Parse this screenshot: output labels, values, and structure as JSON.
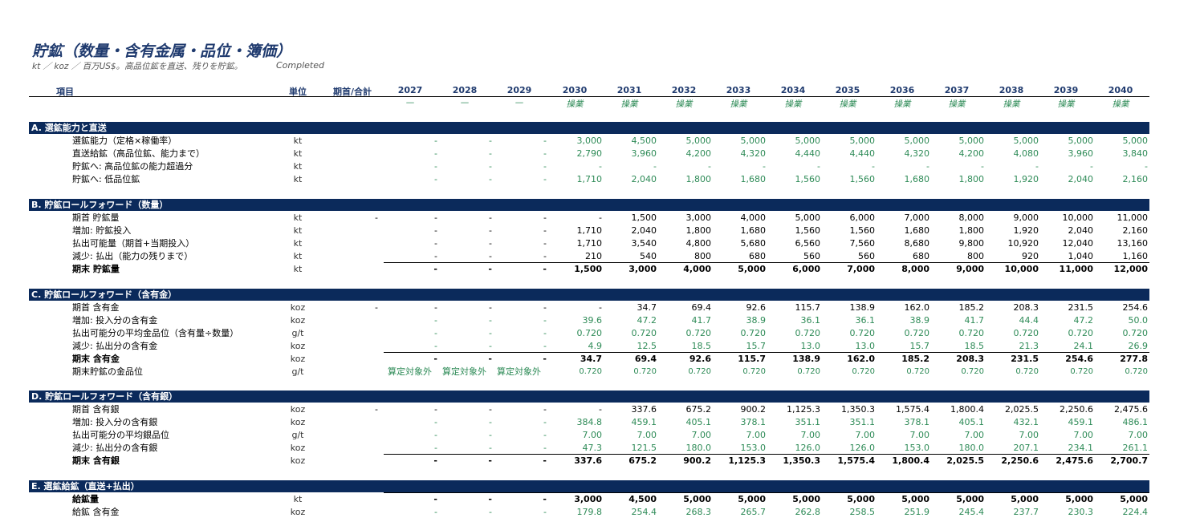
{
  "title": "貯鉱（数量・含有金属・品位・簿価）",
  "subtitle": "kt ／ koz ／ 百万US$。高品位鉱を直送、残りを貯鉱。",
  "status": "Completed",
  "header": {
    "item": "項目",
    "unit": "単位",
    "opening": "期首/合計",
    "years": [
      "2027",
      "2028",
      "2029",
      "2030",
      "2031",
      "2032",
      "2033",
      "2034",
      "2035",
      "2036",
      "2037",
      "2038",
      "2039",
      "2040"
    ],
    "phases": [
      "—",
      "—",
      "—",
      "操業",
      "操業",
      "操業",
      "操業",
      "操業",
      "操業",
      "操業",
      "操業",
      "操業",
      "操業",
      "操業"
    ]
  },
  "sections": [
    {
      "title": "A. 選鉱能力と直送",
      "rows": [
        {
          "label": "選鉱能力（定格×稼働率）",
          "unit": "kt",
          "opening": "",
          "style": "input",
          "values": [
            "-",
            "-",
            "-",
            "3,000",
            "4,500",
            "5,000",
            "5,000",
            "5,000",
            "5,000",
            "5,000",
            "5,000",
            "5,000",
            "5,000",
            "5,000"
          ]
        },
        {
          "label": "直送給鉱（高品位鉱、能力まで）",
          "unit": "kt",
          "opening": "",
          "style": "input",
          "values": [
            "-",
            "-",
            "-",
            "2,790",
            "3,960",
            "4,200",
            "4,320",
            "4,440",
            "4,440",
            "4,320",
            "4,200",
            "4,080",
            "3,960",
            "3,840"
          ]
        },
        {
          "label": "貯鉱へ: 高品位鉱の能力超過分",
          "unit": "kt",
          "opening": "",
          "style": "input",
          "values": [
            "-",
            "-",
            "-",
            "-",
            "-",
            "-",
            "-",
            "-",
            "-",
            "-",
            "-",
            "-",
            "-",
            "-"
          ]
        },
        {
          "label": "貯鉱へ: 低品位鉱",
          "unit": "kt",
          "opening": "",
          "style": "input",
          "values": [
            "-",
            "-",
            "-",
            "1,710",
            "2,040",
            "1,800",
            "1,680",
            "1,560",
            "1,560",
            "1,680",
            "1,800",
            "1,920",
            "2,040",
            "2,160"
          ]
        }
      ]
    },
    {
      "title": "B. 貯鉱ロールフォワード（数量）",
      "rows": [
        {
          "label": "期首 貯鉱量",
          "unit": "kt",
          "opening": "-",
          "style": "plain",
          "values": [
            "-",
            "-",
            "-",
            "-",
            "1,500",
            "3,000",
            "4,000",
            "5,000",
            "6,000",
            "7,000",
            "8,000",
            "9,000",
            "10,000",
            "11,000"
          ]
        },
        {
          "label": "増加: 貯鉱投入",
          "unit": "kt",
          "opening": "",
          "style": "plain",
          "values": [
            "-",
            "-",
            "-",
            "1,710",
            "2,040",
            "1,800",
            "1,680",
            "1,560",
            "1,560",
            "1,680",
            "1,800",
            "1,920",
            "2,040",
            "2,160"
          ]
        },
        {
          "label": "払出可能量（期首+当期投入）",
          "unit": "kt",
          "opening": "",
          "style": "plain",
          "values": [
            "-",
            "-",
            "-",
            "1,710",
            "3,540",
            "4,800",
            "5,680",
            "6,560",
            "7,560",
            "8,680",
            "9,800",
            "10,920",
            "12,040",
            "13,160"
          ]
        },
        {
          "label": "減少: 払出（能力の残りまで）",
          "unit": "kt",
          "opening": "",
          "style": "plain",
          "values": [
            "-",
            "-",
            "-",
            "210",
            "540",
            "800",
            "680",
            "560",
            "560",
            "680",
            "800",
            "920",
            "1,040",
            "1,160"
          ]
        },
        {
          "label": "期末 貯鉱量",
          "unit": "kt",
          "opening": "",
          "style": "bold",
          "values": [
            "-",
            "-",
            "-",
            "1,500",
            "3,000",
            "4,000",
            "5,000",
            "6,000",
            "7,000",
            "8,000",
            "9,000",
            "10,000",
            "11,000",
            "12,000"
          ]
        }
      ]
    },
    {
      "title": "C. 貯鉱ロールフォワード（含有金）",
      "rows": [
        {
          "label": "期首 含有金",
          "unit": "koz",
          "opening": "-",
          "style": "plain",
          "values": [
            "-",
            "-",
            "-",
            "-",
            "34.7",
            "69.4",
            "92.6",
            "115.7",
            "138.9",
            "162.0",
            "185.2",
            "208.3",
            "231.5",
            "254.6"
          ]
        },
        {
          "label": "増加: 投入分の含有金",
          "unit": "koz",
          "opening": "",
          "style": "input",
          "values": [
            "-",
            "-",
            "-",
            "39.6",
            "47.2",
            "41.7",
            "38.9",
            "36.1",
            "36.1",
            "38.9",
            "41.7",
            "44.4",
            "47.2",
            "50.0"
          ]
        },
        {
          "label": "払出可能分の平均金品位（含有量÷数量）",
          "unit": "g/t",
          "opening": "",
          "style": "input",
          "values": [
            "-",
            "-",
            "-",
            "0.720",
            "0.720",
            "0.720",
            "0.720",
            "0.720",
            "0.720",
            "0.720",
            "0.720",
            "0.720",
            "0.720",
            "0.720"
          ]
        },
        {
          "label": "減少: 払出分の含有金",
          "unit": "koz",
          "opening": "",
          "style": "input",
          "values": [
            "-",
            "-",
            "-",
            "4.9",
            "12.5",
            "18.5",
            "15.7",
            "13.0",
            "13.0",
            "15.7",
            "18.5",
            "21.3",
            "24.1",
            "26.9"
          ]
        },
        {
          "label": "期末 含有金",
          "unit": "koz",
          "opening": "",
          "style": "bold",
          "values": [
            "-",
            "-",
            "-",
            "34.7",
            "69.4",
            "92.6",
            "115.7",
            "138.9",
            "162.0",
            "185.2",
            "208.3",
            "231.5",
            "254.6",
            "277.8"
          ]
        },
        {
          "label": "期末貯鉱の金品位",
          "unit": "g/t",
          "opening": "",
          "style": "grade",
          "notes": [
            "算定対象外",
            "算定対象外",
            "算定対象外"
          ],
          "values": [
            "",
            "",
            "",
            "0.720",
            "0.720",
            "0.720",
            "0.720",
            "0.720",
            "0.720",
            "0.720",
            "0.720",
            "0.720",
            "0.720",
            "0.720"
          ]
        }
      ]
    },
    {
      "title": "D. 貯鉱ロールフォワード（含有銀）",
      "rows": [
        {
          "label": "期首 含有銀",
          "unit": "koz",
          "opening": "-",
          "style": "plain",
          "values": [
            "-",
            "-",
            "-",
            "-",
            "337.6",
            "675.2",
            "900.2",
            "1,125.3",
            "1,350.3",
            "1,575.4",
            "1,800.4",
            "2,025.5",
            "2,250.6",
            "2,475.6"
          ]
        },
        {
          "label": "増加: 投入分の含有銀",
          "unit": "koz",
          "opening": "",
          "style": "input",
          "values": [
            "-",
            "-",
            "-",
            "384.8",
            "459.1",
            "405.1",
            "378.1",
            "351.1",
            "351.1",
            "378.1",
            "405.1",
            "432.1",
            "459.1",
            "486.1"
          ]
        },
        {
          "label": "払出可能分の平均銀品位",
          "unit": "g/t",
          "opening": "",
          "style": "input",
          "values": [
            "-",
            "-",
            "-",
            "7.00",
            "7.00",
            "7.00",
            "7.00",
            "7.00",
            "7.00",
            "7.00",
            "7.00",
            "7.00",
            "7.00",
            "7.00"
          ]
        },
        {
          "label": "減少: 払出分の含有銀",
          "unit": "koz",
          "opening": "",
          "style": "input",
          "values": [
            "-",
            "-",
            "-",
            "47.3",
            "121.5",
            "180.0",
            "153.0",
            "126.0",
            "126.0",
            "153.0",
            "180.0",
            "207.1",
            "234.1",
            "261.1"
          ]
        },
        {
          "label": "期末 含有銀",
          "unit": "koz",
          "opening": "",
          "style": "bold",
          "values": [
            "-",
            "-",
            "-",
            "337.6",
            "675.2",
            "900.2",
            "1,125.3",
            "1,350.3",
            "1,575.4",
            "1,800.4",
            "2,025.5",
            "2,250.6",
            "2,475.6",
            "2,700.7"
          ]
        }
      ]
    },
    {
      "title": "E. 選鉱給鉱（直送+払出）",
      "rows": [
        {
          "label": "給鉱量",
          "unit": "kt",
          "opening": "",
          "style": "bold",
          "values": [
            "-",
            "-",
            "-",
            "3,000",
            "4,500",
            "5,000",
            "5,000",
            "5,000",
            "5,000",
            "5,000",
            "5,000",
            "5,000",
            "5,000",
            "5,000"
          ]
        },
        {
          "label": "給鉱 含有金",
          "unit": "koz",
          "opening": "",
          "style": "input",
          "values": [
            "-",
            "-",
            "-",
            "179.8",
            "254.4",
            "268.3",
            "265.7",
            "262.8",
            "258.5",
            "251.9",
            "245.4",
            "237.7",
            "230.3",
            "224.4"
          ]
        }
      ]
    }
  ]
}
